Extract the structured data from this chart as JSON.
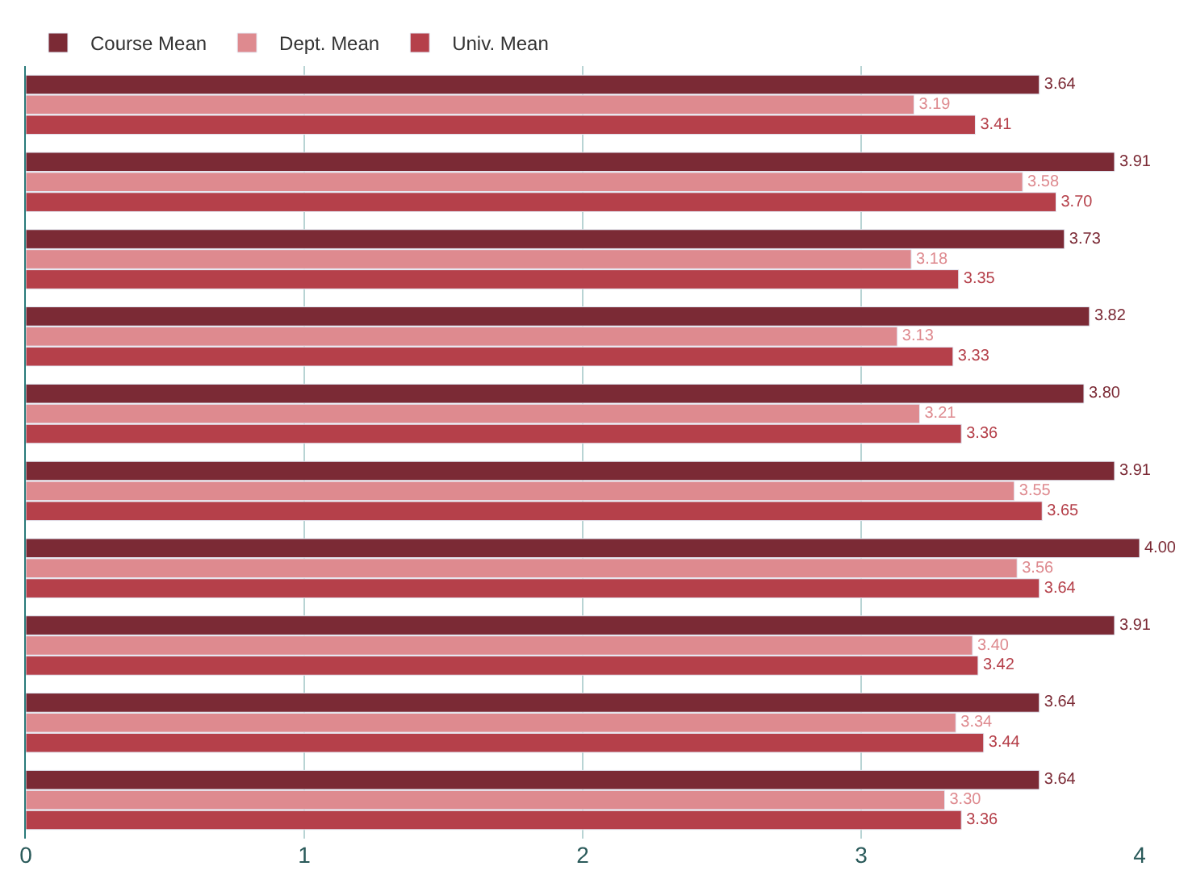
{
  "chart_data": {
    "type": "bar",
    "orientation": "horizontal",
    "categories": [
      null,
      null,
      null,
      null,
      null,
      null,
      null,
      null,
      null,
      null
    ],
    "series": [
      {
        "name": "Course Mean",
        "color": "#7b2a35",
        "values": [
          3.64,
          3.91,
          3.73,
          3.82,
          3.8,
          3.91,
          4.0,
          3.91,
          3.64,
          3.64
        ],
        "value_labels": [
          "3.64",
          "3.91",
          "3.73",
          "3.82",
          "3.80",
          "3.91",
          "4.00",
          "3.91",
          "3.64",
          "3.64"
        ]
      },
      {
        "name": "Dept. Mean",
        "color": "#de8a8f",
        "values": [
          3.19,
          3.58,
          3.18,
          3.13,
          3.21,
          3.55,
          3.56,
          3.4,
          3.34,
          3.3
        ],
        "value_labels": [
          "3.19",
          "3.58",
          "3.18",
          "3.13",
          "3.21",
          "3.55",
          "3.56",
          "3.40",
          "3.34",
          "3.30"
        ]
      },
      {
        "name": "Univ. Mean",
        "color": "#b5404a",
        "values": [
          3.41,
          3.7,
          3.35,
          3.33,
          3.36,
          3.65,
          3.64,
          3.42,
          3.44,
          3.36
        ],
        "value_labels": [
          "3.41",
          "3.70",
          "3.35",
          "3.33",
          "3.36",
          "3.65",
          "3.64",
          "3.42",
          "3.44",
          "3.36"
        ]
      }
    ],
    "xlim": [
      0,
      4
    ],
    "xticks": [
      0,
      1,
      2,
      3,
      4
    ],
    "grid": "x",
    "legend": "top left"
  }
}
